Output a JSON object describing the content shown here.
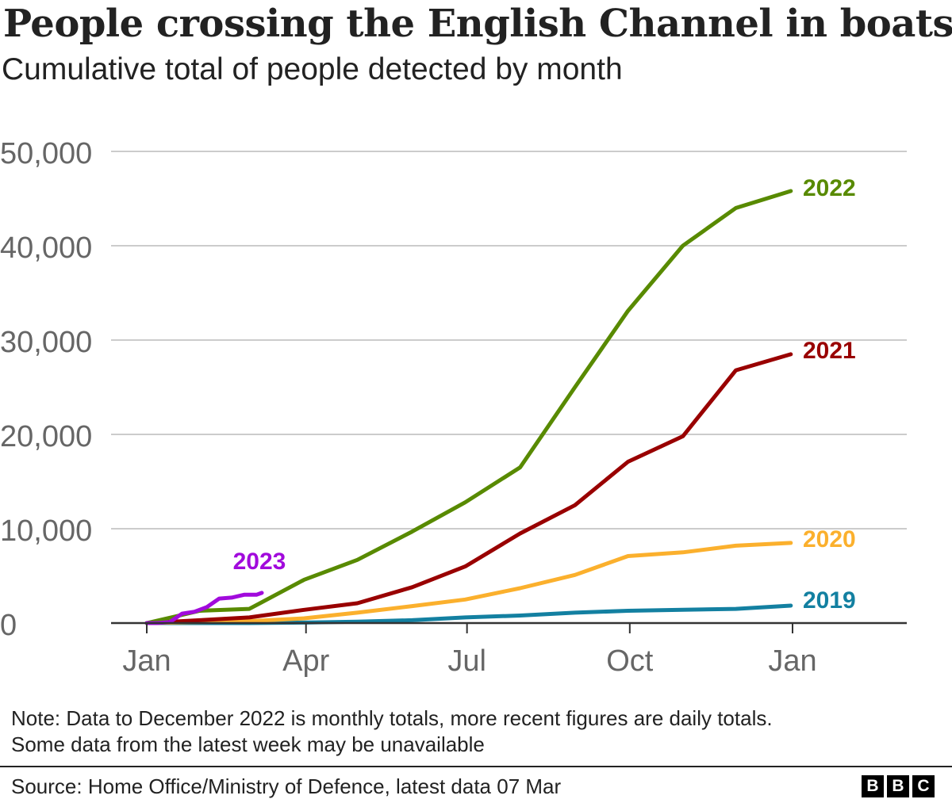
{
  "title": "People crossing the English Channel in boats",
  "subtitle": "Cumulative total of people detected by month",
  "note_lines": [
    "Note: Data to December 2022 is monthly totals, more recent figures are daily totals.",
    "Some data from the latest week may be unavailable"
  ],
  "source": "Source: Home Office/Ministry of Defence, latest data 07 Mar",
  "logo_letters": [
    "B",
    "B",
    "C"
  ],
  "chart_data": {
    "type": "line",
    "title": "People crossing the English Channel in boats",
    "subtitle": "Cumulative total of people detected by month",
    "xlabel": "",
    "ylabel": "",
    "ylim": [
      0,
      50000
    ],
    "yticks": [
      0,
      10000,
      20000,
      30000,
      40000,
      50000
    ],
    "ytick_labels": [
      "0",
      "10,000",
      "20,000",
      "30,000",
      "40,000",
      "50,000"
    ],
    "xlim": [
      "Jan 1",
      "Feb 15 (following year)"
    ],
    "xticks": [
      "Jan 1",
      "Apr 1",
      "Jul 1",
      "Oct 1",
      "Jan 1 (following year)"
    ],
    "xtick_labels": [
      "Jan",
      "Apr",
      "Jul",
      "Oct",
      "Jan"
    ],
    "grid": "horizontal",
    "legend": "direct labels at line ends",
    "series": [
      {
        "name": "2022",
        "color": "#588a00",
        "x": [
          "Jan 1",
          "Jan 31",
          "Feb 28",
          "Mar 31",
          "Apr 30",
          "May 31",
          "Jun 30",
          "Jul 31",
          "Aug 31",
          "Sep 30",
          "Oct 31",
          "Nov 30",
          "Dec 31"
        ],
        "values": [
          0,
          1300,
          1500,
          4600,
          6700,
          9700,
          12800,
          16500,
          25000,
          33100,
          40000,
          44000,
          45800
        ]
      },
      {
        "name": "2021",
        "color": "#990000",
        "x": [
          "Jan 1",
          "Jan 31",
          "Feb 28",
          "Mar 31",
          "Apr 30",
          "May 31",
          "Jun 30",
          "Jul 31",
          "Aug 31",
          "Sep 30",
          "Oct 31",
          "Nov 30",
          "Dec 31"
        ],
        "values": [
          0,
          300,
          600,
          1400,
          2100,
          3800,
          6000,
          9500,
          12500,
          17100,
          19800,
          26800,
          28500
        ]
      },
      {
        "name": "2020",
        "color": "#fbb02d",
        "x": [
          "Jan 1",
          "Jan 31",
          "Feb 28",
          "Mar 31",
          "Apr 30",
          "May 31",
          "Jun 30",
          "Jul 31",
          "Aug 31",
          "Sep 30",
          "Oct 31",
          "Nov 30",
          "Dec 31"
        ],
        "values": [
          0,
          100,
          200,
          500,
          1100,
          1800,
          2500,
          3700,
          5100,
          7100,
          7500,
          8200,
          8500
        ]
      },
      {
        "name": "2019",
        "color": "#1380a1",
        "x": [
          "Jan 1",
          "Jan 31",
          "Feb 28",
          "Mar 31",
          "Apr 30",
          "May 31",
          "Jun 30",
          "Jul 31",
          "Aug 31",
          "Sep 30",
          "Oct 31",
          "Nov 30",
          "Dec 31"
        ],
        "values": [
          0,
          0,
          0,
          50,
          150,
          300,
          600,
          800,
          1100,
          1300,
          1400,
          1500,
          1850
        ]
      },
      {
        "name": "2023",
        "color": "#a10adc",
        "x": [
          "Jan 1",
          "Jan 7",
          "Jan 14",
          "Jan 21",
          "Jan 28",
          "Feb 4",
          "Feb 11",
          "Feb 18",
          "Feb 25",
          "Mar 4",
          "Mar 7"
        ],
        "values": [
          0,
          0,
          100,
          1000,
          1200,
          1700,
          2600,
          2700,
          3000,
          3000,
          3200
        ]
      }
    ]
  }
}
